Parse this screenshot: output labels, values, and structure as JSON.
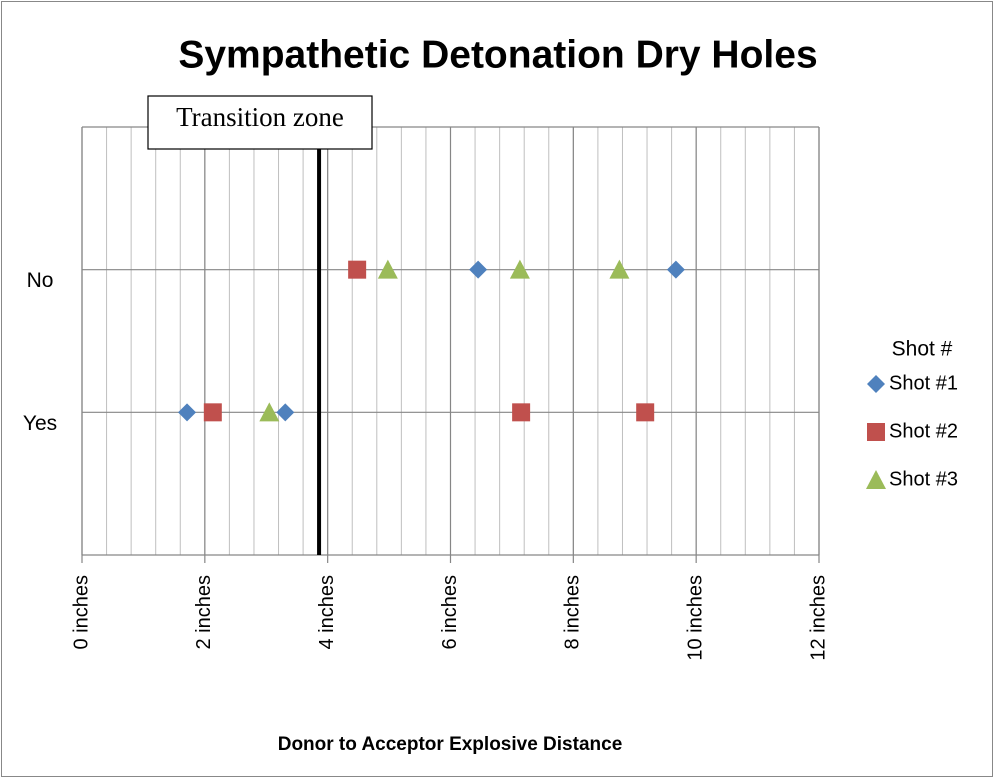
{
  "chart_data": {
    "type": "scatter",
    "title": "Sympathetic Detonation Dry Holes",
    "x_label": "Donor to Acceptor Explosive Distance",
    "legend_title": "Shot #",
    "legend_position": "right",
    "xlim": [
      0,
      12
    ],
    "xticks": [
      {
        "value": 0,
        "label": "0 inches"
      },
      {
        "value": 2,
        "label": "2 inches"
      },
      {
        "value": 4,
        "label": "4 inches"
      },
      {
        "value": 6,
        "label": "6 inches"
      },
      {
        "value": 8,
        "label": "8 inches"
      },
      {
        "value": 10,
        "label": "10 inches"
      },
      {
        "value": 12,
        "label": "12 inches"
      }
    ],
    "minor_grid_step": 0.4,
    "ylim": [
      0,
      3
    ],
    "yticks": [
      {
        "value": 1,
        "label": "Yes"
      },
      {
        "value": 2,
        "label": "No"
      }
    ],
    "grid": true,
    "annotation": {
      "text": "Transition zone",
      "x": 3.86
    },
    "series": [
      {
        "name": "Shot #1",
        "color": "#4f81bd",
        "marker": "diamond",
        "x": [
          6.45,
          9.67,
          1.71,
          3.31
        ],
        "y": [
          2,
          2,
          1,
          1
        ]
      },
      {
        "name": "Shot #2",
        "color": "#c0504d",
        "marker": "square",
        "x": [
          4.48,
          2.13,
          7.15,
          9.17
        ],
        "y": [
          2,
          1,
          1,
          1
        ]
      },
      {
        "name": "Shot #3",
        "color": "#9bbb59",
        "marker": "triangle",
        "x": [
          4.98,
          7.13,
          8.75,
          3.05
        ],
        "y": [
          2,
          2,
          2,
          1
        ]
      }
    ]
  }
}
